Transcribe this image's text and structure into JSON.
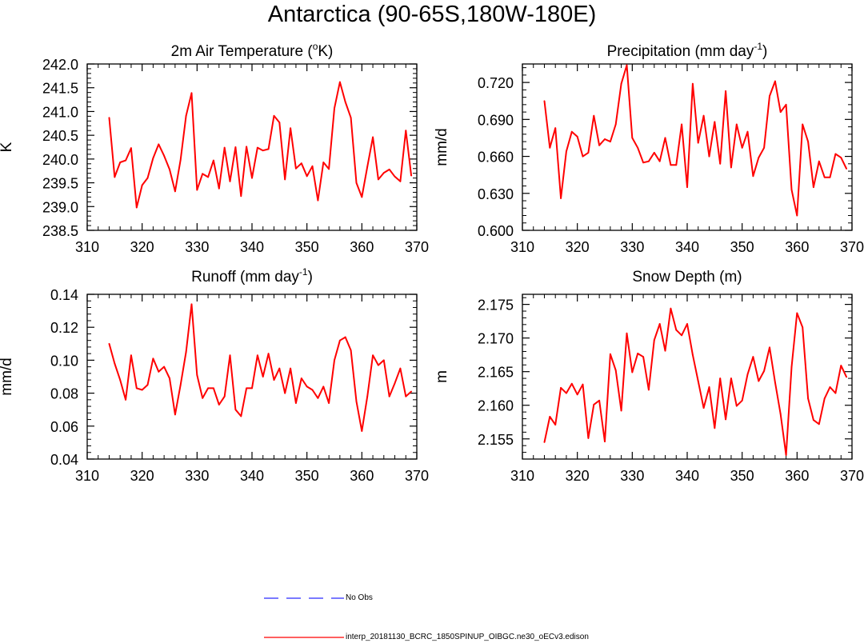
{
  "title": "Antarctica (90-65S,180W-180E)",
  "colors": {
    "model_line": "#ff0000",
    "obs_line": "#2a2aff",
    "axis": "#000000"
  },
  "legend": [
    {
      "label": "No Obs",
      "style": "dashed",
      "color": "#2a2aff"
    },
    {
      "label": "interp_20181130_BCRC_1850SPINUP_OIBGC.ne30_oECv3.edison",
      "style": "solid",
      "color": "#ff0000"
    }
  ],
  "chart_data": [
    {
      "type": "line",
      "title_main": "2m Air Temperature (",
      "title_sup1": "o",
      "title_mid": "K)",
      "title_sup2": "",
      "title_end": "",
      "ylabel": "K",
      "xlim": [
        310,
        370
      ],
      "ylim": [
        238.5,
        242.0
      ],
      "xticks": [
        310,
        320,
        330,
        340,
        350,
        360,
        370
      ],
      "xtick_labels": [
        "310",
        "320",
        "330",
        "340",
        "350",
        "360",
        "370"
      ],
      "yticks": [
        238.5,
        239.0,
        239.5,
        240.0,
        240.5,
        241.0,
        241.5,
        242.0
      ],
      "ytick_labels": [
        "238.5",
        "239.0",
        "239.5",
        "240.0",
        "240.5",
        "241.0",
        "241.5",
        "242.0"
      ],
      "x": [
        314,
        315,
        316,
        317,
        318,
        319,
        320,
        321,
        322,
        323,
        324,
        325,
        326,
        327,
        328,
        329,
        330,
        331,
        332,
        333,
        334,
        335,
        336,
        337,
        338,
        339,
        340,
        341,
        342,
        343,
        344,
        345,
        346,
        347,
        348,
        349,
        350,
        351,
        352,
        353,
        354,
        355,
        356,
        357,
        358,
        359,
        360,
        361,
        362,
        363,
        364,
        365,
        366,
        367,
        368,
        369
      ],
      "series": [
        {
          "name": "model",
          "values": [
            240.87,
            239.62,
            239.93,
            239.97,
            240.23,
            238.98,
            239.45,
            239.6,
            240.02,
            240.31,
            240.07,
            239.78,
            239.32,
            239.98,
            240.91,
            241.39,
            239.35,
            239.69,
            239.62,
            239.97,
            239.38,
            240.24,
            239.53,
            240.25,
            239.22,
            240.26,
            239.6,
            240.24,
            240.18,
            240.21,
            240.91,
            240.77,
            239.57,
            240.65,
            239.8,
            239.91,
            239.64,
            239.85,
            239.13,
            239.93,
            239.79,
            241.07,
            241.62,
            241.2,
            240.87,
            239.5,
            239.2,
            239.84,
            240.46,
            239.57,
            239.71,
            239.78,
            239.63,
            239.53,
            240.6,
            239.65
          ]
        }
      ]
    },
    {
      "type": "line",
      "title_main": "Precipitation (mm day",
      "title_sup1": "-1",
      "title_mid": ")",
      "title_sup2": "",
      "title_end": "",
      "ylabel": "mm/d",
      "xlim": [
        310,
        370
      ],
      "ylim": [
        0.6,
        0.735
      ],
      "xticks": [
        310,
        320,
        330,
        340,
        350,
        360,
        370
      ],
      "xtick_labels": [
        "310",
        "320",
        "330",
        "340",
        "350",
        "360",
        "370"
      ],
      "yticks": [
        0.6,
        0.63,
        0.66,
        0.69,
        0.72
      ],
      "ytick_labels": [
        "0.600",
        "0.630",
        "0.660",
        "0.690",
        "0.720"
      ],
      "x": [
        314,
        315,
        316,
        317,
        318,
        319,
        320,
        321,
        322,
        323,
        324,
        325,
        326,
        327,
        328,
        329,
        330,
        331,
        332,
        333,
        334,
        335,
        336,
        337,
        338,
        339,
        340,
        341,
        342,
        343,
        344,
        345,
        346,
        347,
        348,
        349,
        350,
        351,
        352,
        353,
        354,
        355,
        356,
        357,
        358,
        359,
        360,
        361,
        362,
        363,
        364,
        365,
        366,
        367,
        368,
        369
      ],
      "series": [
        {
          "name": "model",
          "values": [
            0.705,
            0.667,
            0.683,
            0.626,
            0.664,
            0.68,
            0.676,
            0.66,
            0.663,
            0.693,
            0.669,
            0.674,
            0.672,
            0.686,
            0.719,
            0.734,
            0.675,
            0.667,
            0.655,
            0.656,
            0.663,
            0.656,
            0.675,
            0.653,
            0.653,
            0.686,
            0.635,
            0.719,
            0.671,
            0.693,
            0.66,
            0.688,
            0.654,
            0.713,
            0.651,
            0.686,
            0.667,
            0.68,
            0.644,
            0.659,
            0.667,
            0.709,
            0.721,
            0.696,
            0.702,
            0.633,
            0.612,
            0.686,
            0.672,
            0.635,
            0.656,
            0.643,
            0.643,
            0.662,
            0.659,
            0.65
          ]
        }
      ]
    },
    {
      "type": "line",
      "title_main": "Runoff (mm day",
      "title_sup1": "-1",
      "title_mid": ")",
      "title_sup2": "",
      "title_end": "",
      "ylabel": "mm/d",
      "xlim": [
        310,
        370
      ],
      "ylim": [
        0.04,
        0.14
      ],
      "xticks": [
        310,
        320,
        330,
        340,
        350,
        360,
        370
      ],
      "xtick_labels": [
        "310",
        "320",
        "330",
        "340",
        "350",
        "360",
        "370"
      ],
      "yticks": [
        0.04,
        0.06,
        0.08,
        0.1,
        0.12,
        0.14
      ],
      "ytick_labels": [
        "0.04",
        "0.06",
        "0.08",
        "0.10",
        "0.12",
        "0.14"
      ],
      "x": [
        314,
        315,
        316,
        317,
        318,
        319,
        320,
        321,
        322,
        323,
        324,
        325,
        326,
        327,
        328,
        329,
        330,
        331,
        332,
        333,
        334,
        335,
        336,
        337,
        338,
        339,
        340,
        341,
        342,
        343,
        344,
        345,
        346,
        347,
        348,
        349,
        350,
        351,
        352,
        353,
        354,
        355,
        356,
        357,
        358,
        359,
        360,
        361,
        362,
        363,
        364,
        365,
        366,
        367,
        368,
        369
      ],
      "series": [
        {
          "name": "model",
          "values": [
            0.11,
            0.098,
            0.088,
            0.076,
            0.103,
            0.083,
            0.082,
            0.085,
            0.101,
            0.093,
            0.096,
            0.089,
            0.067,
            0.085,
            0.105,
            0.134,
            0.091,
            0.077,
            0.083,
            0.083,
            0.073,
            0.078,
            0.103,
            0.07,
            0.066,
            0.083,
            0.083,
            0.103,
            0.09,
            0.104,
            0.088,
            0.095,
            0.08,
            0.095,
            0.074,
            0.089,
            0.084,
            0.082,
            0.077,
            0.084,
            0.074,
            0.1,
            0.112,
            0.114,
            0.106,
            0.075,
            0.057,
            0.078,
            0.103,
            0.097,
            0.1,
            0.078,
            0.086,
            0.095,
            0.078,
            0.081
          ]
        }
      ]
    },
    {
      "type": "line",
      "title_main": "Snow Depth (m)",
      "title_sup1": "",
      "title_mid": "",
      "title_sup2": "",
      "title_end": "",
      "ylabel": "m",
      "xlim": [
        310,
        370
      ],
      "ylim": [
        2.152,
        2.1765
      ],
      "xticks": [
        310,
        320,
        330,
        340,
        350,
        360,
        370
      ],
      "xtick_labels": [
        "310",
        "320",
        "330",
        "340",
        "350",
        "360",
        "370"
      ],
      "yticks": [
        2.155,
        2.16,
        2.165,
        2.17,
        2.175
      ],
      "ytick_labels": [
        "2.155",
        "2.160",
        "2.165",
        "2.170",
        "2.175"
      ],
      "x": [
        314,
        315,
        316,
        317,
        318,
        319,
        320,
        321,
        322,
        323,
        324,
        325,
        326,
        327,
        328,
        329,
        330,
        331,
        332,
        333,
        334,
        335,
        336,
        337,
        338,
        339,
        340,
        341,
        342,
        343,
        344,
        345,
        346,
        347,
        348,
        349,
        350,
        351,
        352,
        353,
        354,
        355,
        356,
        357,
        358,
        359,
        360,
        361,
        362,
        363,
        364,
        365,
        366,
        367,
        368,
        369
      ],
      "series": [
        {
          "name": "model",
          "values": [
            2.1545,
            2.1583,
            2.1571,
            2.1626,
            2.1618,
            2.1632,
            2.1616,
            2.1631,
            2.1551,
            2.1601,
            2.1607,
            2.1546,
            2.1676,
            2.1652,
            2.1592,
            2.1707,
            2.1649,
            2.1677,
            2.1672,
            2.1623,
            2.1697,
            2.1721,
            2.1681,
            2.1744,
            2.1712,
            2.1704,
            2.1721,
            2.1675,
            2.1636,
            2.1596,
            2.1627,
            2.1566,
            2.164,
            2.1579,
            2.164,
            2.1599,
            2.1607,
            2.1646,
            2.1672,
            2.1636,
            2.1651,
            2.1686,
            2.1634,
            2.1587,
            2.1526,
            2.1657,
            2.1737,
            2.1716,
            2.161,
            2.1578,
            2.1572,
            2.161,
            2.1627,
            2.1618,
            2.1659,
            2.1642
          ]
        }
      ]
    }
  ]
}
